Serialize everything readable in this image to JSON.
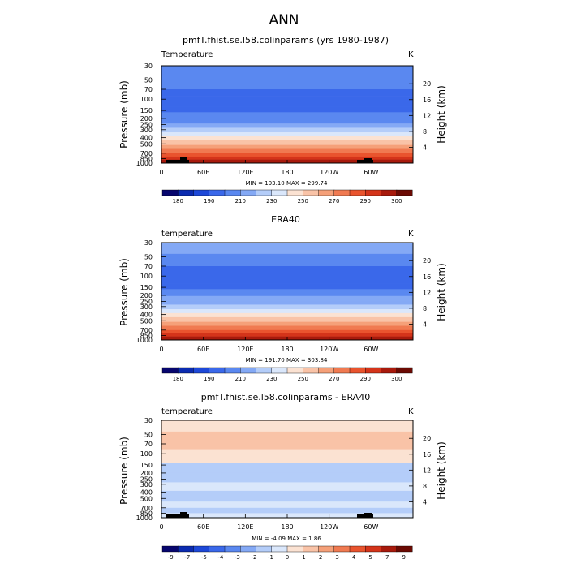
{
  "main_title": "ANN",
  "panels": [
    {
      "title": "pmfT.fhist.se.l58.colinparams (yrs 1980-1987)",
      "var_label": "Temperature",
      "units": "K",
      "stats": "MIN = 193.10   MAX = 299.74"
    },
    {
      "title": "ERA40",
      "var_label": "temperature",
      "units": "K",
      "stats": "MIN = 191.70   MAX = 303.84"
    },
    {
      "title": "pmfT.fhist.se.l58.colinparams - ERA40",
      "var_label": "temperature",
      "units": "K",
      "stats": "MIN =   -4.09   MAX =    1.86"
    }
  ],
  "chart_data": [
    {
      "type": "heatmap",
      "title": "pmfT.fhist.se.l58.colinparams (yrs 1980-1987)",
      "ylabel": "Pressure (mb)",
      "ylabel_right": "Height (km)",
      "x_ticks": [
        "0",
        "60E",
        "120E",
        "180",
        "120W",
        "60W"
      ],
      "y_ticks": [
        "30",
        "50",
        "70",
        "100",
        "150",
        "200",
        "250",
        "300",
        "400",
        "500",
        "700",
        "850",
        "1000"
      ],
      "y_right_ticks": [
        "20",
        "16",
        "12",
        "8",
        "4"
      ],
      "colorbar_labels": [
        "180",
        "190",
        "210",
        "230",
        "250",
        "270",
        "290",
        "300"
      ],
      "colorbar_colors": [
        "#07066e",
        "#0b2bb0",
        "#1d48d8",
        "#3a68ea",
        "#5a88f0",
        "#84a9f5",
        "#b4cdf9",
        "#dae7fb",
        "#fbe2d2",
        "#f9c3a7",
        "#f5a079",
        "#f07a51",
        "#e9542e",
        "#d4341a",
        "#a81a0c",
        "#6b0a03"
      ],
      "vertical_bands": [
        {
          "p_top": 30,
          "p_bottom": 45,
          "value": 215
        },
        {
          "p_top": 45,
          "p_bottom": 70,
          "value": 210
        },
        {
          "p_top": 70,
          "p_bottom": 90,
          "value": 205
        },
        {
          "p_top": 90,
          "p_bottom": 130,
          "value": 200
        },
        {
          "p_top": 130,
          "p_bottom": 160,
          "value": 205
        },
        {
          "p_top": 160,
          "p_bottom": 205,
          "value": 210
        },
        {
          "p_top": 205,
          "p_bottom": 240,
          "value": 215
        },
        {
          "p_top": 240,
          "p_bottom": 280,
          "value": 220
        },
        {
          "p_top": 280,
          "p_bottom": 330,
          "value": 228
        },
        {
          "p_top": 330,
          "p_bottom": 380,
          "value": 236
        },
        {
          "p_top": 380,
          "p_bottom": 440,
          "value": 244
        },
        {
          "p_top": 440,
          "p_bottom": 520,
          "value": 252
        },
        {
          "p_top": 520,
          "p_bottom": 600,
          "value": 260
        },
        {
          "p_top": 600,
          "p_bottom": 700,
          "value": 268
        },
        {
          "p_top": 700,
          "p_bottom": 790,
          "value": 276
        },
        {
          "p_top": 790,
          "p_bottom": 880,
          "value": 283
        },
        {
          "p_top": 880,
          "p_bottom": 1000,
          "value": 292
        }
      ],
      "color_min": 175,
      "color_max": 305
    },
    {
      "type": "heatmap",
      "title": "ERA40",
      "ylabel": "Pressure (mb)",
      "ylabel_right": "Height (km)",
      "x_ticks": [
        "0",
        "60E",
        "120E",
        "180",
        "120W",
        "60W"
      ],
      "y_ticks": [
        "30",
        "50",
        "70",
        "100",
        "150",
        "200",
        "250",
        "300",
        "400",
        "500",
        "700",
        "850",
        "1000"
      ],
      "y_right_ticks": [
        "20",
        "16",
        "12",
        "8",
        "4"
      ],
      "colorbar_labels": [
        "180",
        "190",
        "210",
        "230",
        "250",
        "270",
        "290",
        "300"
      ],
      "colorbar_colors": [
        "#07066e",
        "#0b2bb0",
        "#1d48d8",
        "#3a68ea",
        "#5a88f0",
        "#84a9f5",
        "#b4cdf9",
        "#dae7fb",
        "#fbe2d2",
        "#f9c3a7",
        "#f5a079",
        "#f07a51",
        "#e9542e",
        "#d4341a",
        "#a81a0c",
        "#6b0a03"
      ],
      "vertical_bands": [
        {
          "p_top": 30,
          "p_bottom": 45,
          "value": 218
        },
        {
          "p_top": 45,
          "p_bottom": 70,
          "value": 212
        },
        {
          "p_top": 70,
          "p_bottom": 90,
          "value": 207
        },
        {
          "p_top": 90,
          "p_bottom": 130,
          "value": 202
        },
        {
          "p_top": 130,
          "p_bottom": 160,
          "value": 207
        },
        {
          "p_top": 160,
          "p_bottom": 205,
          "value": 212
        },
        {
          "p_top": 205,
          "p_bottom": 240,
          "value": 217
        },
        {
          "p_top": 240,
          "p_bottom": 280,
          "value": 222
        },
        {
          "p_top": 280,
          "p_bottom": 330,
          "value": 230
        },
        {
          "p_top": 330,
          "p_bottom": 380,
          "value": 238
        },
        {
          "p_top": 380,
          "p_bottom": 440,
          "value": 246
        },
        {
          "p_top": 440,
          "p_bottom": 520,
          "value": 254
        },
        {
          "p_top": 520,
          "p_bottom": 600,
          "value": 262
        },
        {
          "p_top": 600,
          "p_bottom": 700,
          "value": 270
        },
        {
          "p_top": 700,
          "p_bottom": 790,
          "value": 278
        },
        {
          "p_top": 790,
          "p_bottom": 880,
          "value": 286
        },
        {
          "p_top": 880,
          "p_bottom": 1000,
          "value": 295
        }
      ],
      "color_min": 175,
      "color_max": 305
    },
    {
      "type": "heatmap",
      "title": "pmfT.fhist.se.l58.colinparams - ERA40",
      "ylabel": "Pressure (mb)",
      "ylabel_right": "Height (km)",
      "x_ticks": [
        "0",
        "60E",
        "120E",
        "180",
        "120W",
        "60W"
      ],
      "y_ticks": [
        "30",
        "50",
        "70",
        "100",
        "150",
        "200",
        "250",
        "300",
        "400",
        "500",
        "700",
        "850",
        "1000"
      ],
      "y_right_ticks": [
        "20",
        "16",
        "12",
        "8",
        "4"
      ],
      "colorbar_labels": [
        "-9",
        "-7",
        "-5",
        "-4",
        "-3",
        "-2",
        "-1",
        "0",
        "1",
        "2",
        "3",
        "4",
        "5",
        "7",
        "9"
      ],
      "colorbar_colors": [
        "#07066e",
        "#0b2bb0",
        "#1d48d8",
        "#3a68ea",
        "#5a88f0",
        "#84a9f5",
        "#b4cdf9",
        "#dae7fb",
        "#fbe2d2",
        "#f9c3a7",
        "#f5a079",
        "#f07a51",
        "#e9542e",
        "#d4341a",
        "#a81a0c",
        "#6b0a03"
      ],
      "vertical_bands": [
        {
          "p_top": 30,
          "p_bottom": 45,
          "value": 0.5
        },
        {
          "p_top": 45,
          "p_bottom": 85,
          "value": 1.3
        },
        {
          "p_top": 85,
          "p_bottom": 140,
          "value": 0.5
        },
        {
          "p_top": 140,
          "p_bottom": 200,
          "value": -2.5
        },
        {
          "p_top": 200,
          "p_bottom": 280,
          "value": -1.8
        },
        {
          "p_top": 280,
          "p_bottom": 380,
          "value": -0.6
        },
        {
          "p_top": 380,
          "p_bottom": 560,
          "value": -1.3
        },
        {
          "p_top": 560,
          "p_bottom": 700,
          "value": -0.5
        },
        {
          "p_top": 700,
          "p_bottom": 850,
          "value": -1.3
        },
        {
          "p_top": 850,
          "p_bottom": 1000,
          "value": -0.6
        }
      ],
      "color_min": -10,
      "color_max": 10
    }
  ]
}
